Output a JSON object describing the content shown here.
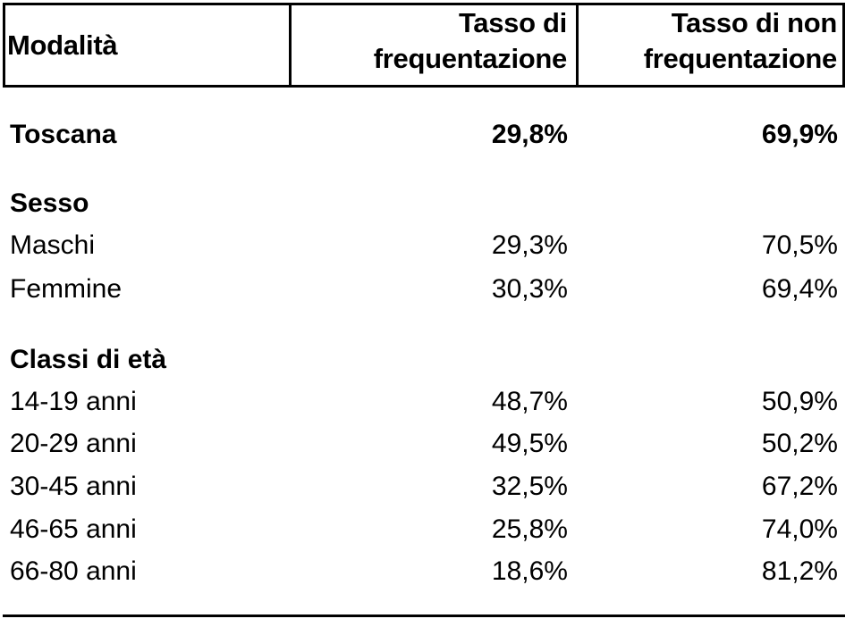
{
  "header": {
    "col1": "Modalità",
    "col2_line1": "Tasso di",
    "col2_line2": "frequentazione",
    "col3_line1": "Tasso di non",
    "col3_line2": "frequentazione"
  },
  "rows": [
    {
      "label": "Toscana",
      "a": "29,8%",
      "b": "69,9%",
      "bold": true
    },
    {
      "label": "Sesso",
      "a": "",
      "b": "",
      "bold": true
    },
    {
      "label": "Maschi",
      "a": "29,3%",
      "b": "70,5%",
      "bold": false
    },
    {
      "label": "Femmine",
      "a": "30,3%",
      "b": "69,4%",
      "bold": false
    },
    {
      "label": "Classi di età",
      "a": "",
      "b": "",
      "bold": true
    },
    {
      "label": "14-19 anni",
      "a": "48,7%",
      "b": "50,9%",
      "bold": false
    },
    {
      "label": "20-29 anni",
      "a": "49,5%",
      "b": "50,2%",
      "bold": false
    },
    {
      "label": "30-45 anni",
      "a": "32,5%",
      "b": "67,2%",
      "bold": false
    },
    {
      "label": "46-65 anni",
      "a": "25,8%",
      "b": "74,0%",
      "bold": false
    },
    {
      "label": "66-80 anni",
      "a": "18,6%",
      "b": "81,2%",
      "bold": false
    }
  ]
}
